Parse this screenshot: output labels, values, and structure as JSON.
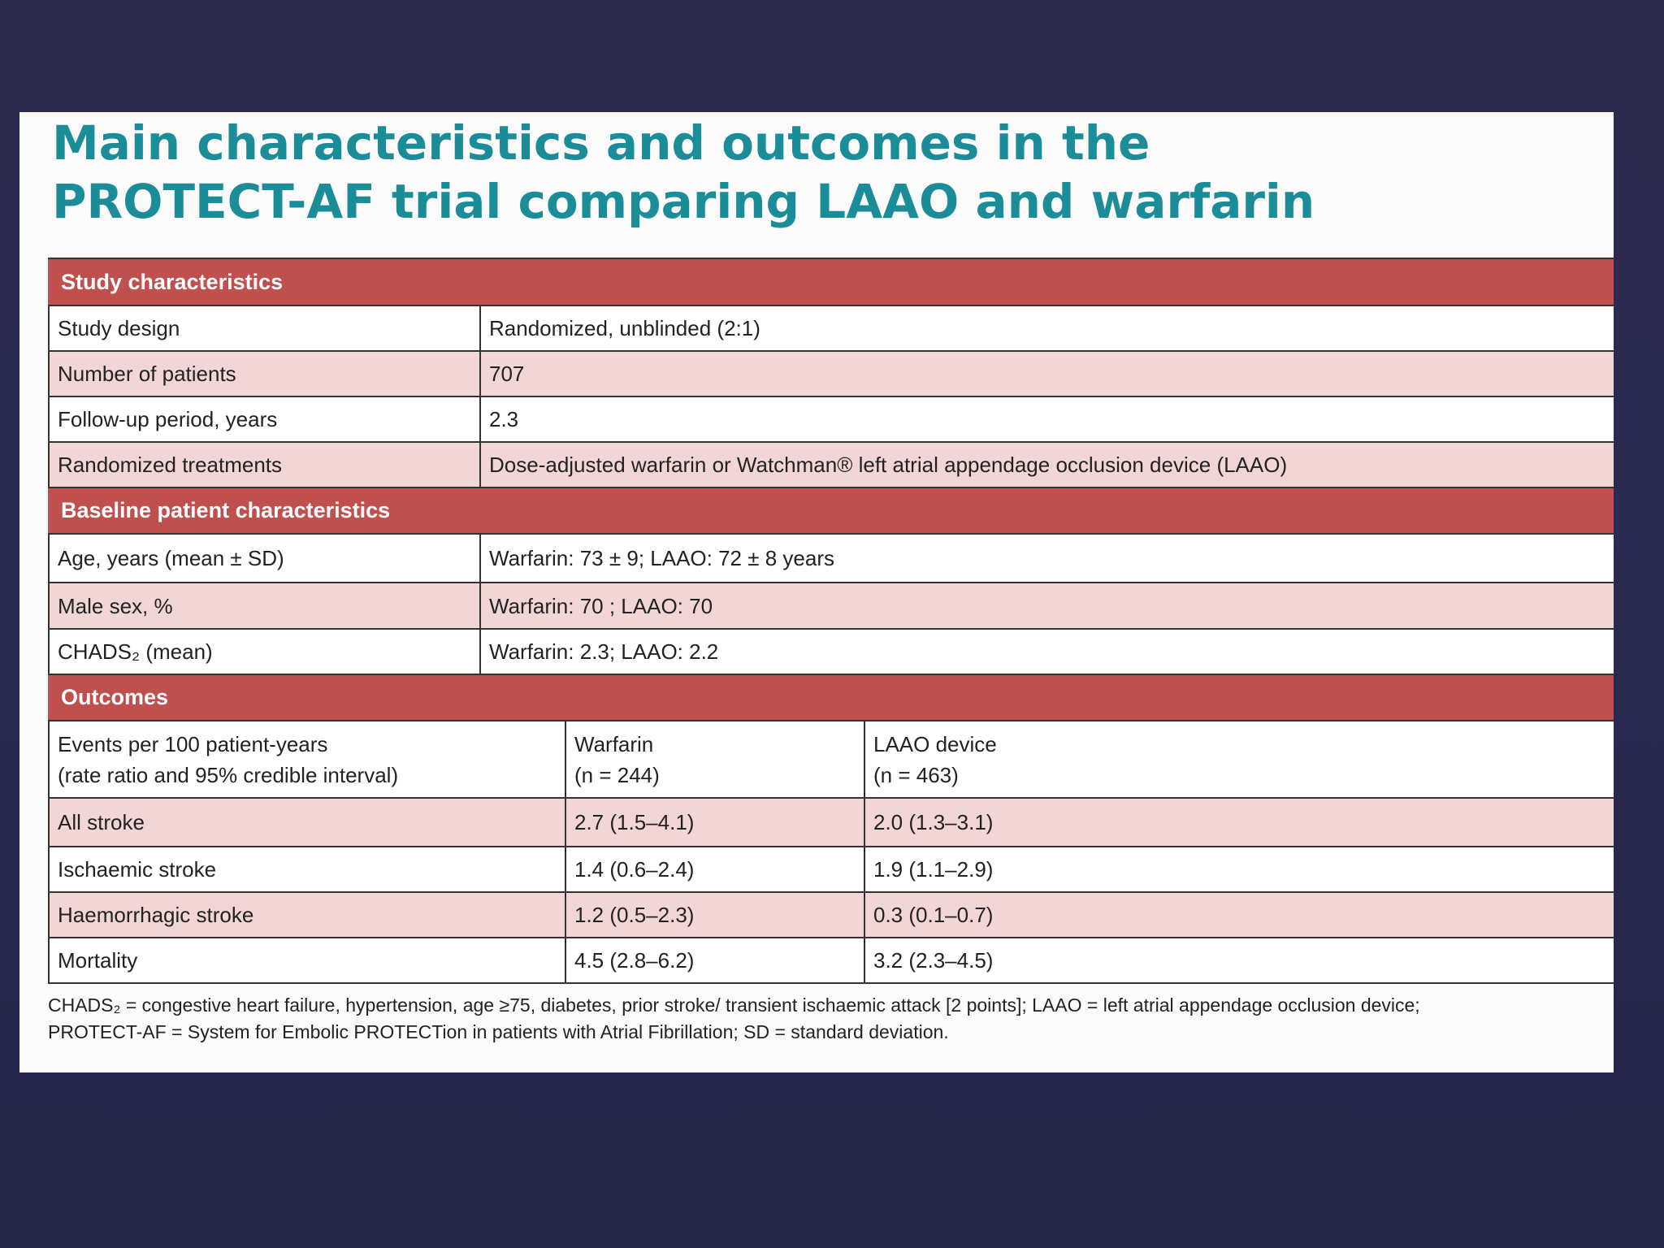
{
  "title": [
    "Main characteristics and outcomes in the",
    "PROTECT-AF trial comparing LAAO and warfarin"
  ],
  "sections": [
    {
      "heading": "Study characteristics",
      "rows": [
        [
          "Study design",
          "Randomized, unblinded (2:1)"
        ],
        [
          "Number of patients",
          "707"
        ],
        [
          "Follow-up period, years",
          "2.3"
        ],
        [
          "Randomized treatments",
          "Dose-adjusted warfarin or Watchman® left atrial appendage occlusion device (LAAO)"
        ]
      ]
    },
    {
      "heading": "Baseline patient characteristics",
      "rows": [
        [
          "Age, years (mean ± SD)",
          "Warfarin: 73 ± 9; LAAO: 72 ± 8 years"
        ],
        [
          "Male sex, %",
          "Warfarin: 70 ; LAAO: 70"
        ],
        [
          "CHADS₂ (mean)",
          "Warfarin: 2.3; LAAO: 2.2"
        ]
      ]
    },
    {
      "heading": "Outcomes",
      "header": [
        "Events per 100 patient-years\n(rate ratio and 95% credible interval)",
        "Warfarin\n(n = 244)",
        "LAAO device\n(n = 463)"
      ],
      "rows": [
        [
          "All stroke",
          "2.7 (1.5–4.1)",
          "2.0 (1.3–3.1)"
        ],
        [
          "Ischaemic stroke",
          "1.4 (0.6–2.4)",
          "1.9 (1.1–2.9)"
        ],
        [
          "Haemorrhagic stroke",
          "1.2 (0.5–2.3)",
          "0.3 (0.1–0.7)"
        ],
        [
          "Mortality",
          "4.5 (2.8–6.2)",
          "3.2 (2.3–4.5)"
        ]
      ]
    }
  ],
  "footnote": [
    "CHADS₂ = congestive heart failure, hypertension, age ≥75, diabetes, prior stroke/ transient ischaemic attack [2 points]; LAAO = left atrial appendage occlusion device;",
    "PROTECT-AF = System for Embolic PROTECTion in patients with Atrial Fibrillation; SD = standard deviation."
  ]
}
